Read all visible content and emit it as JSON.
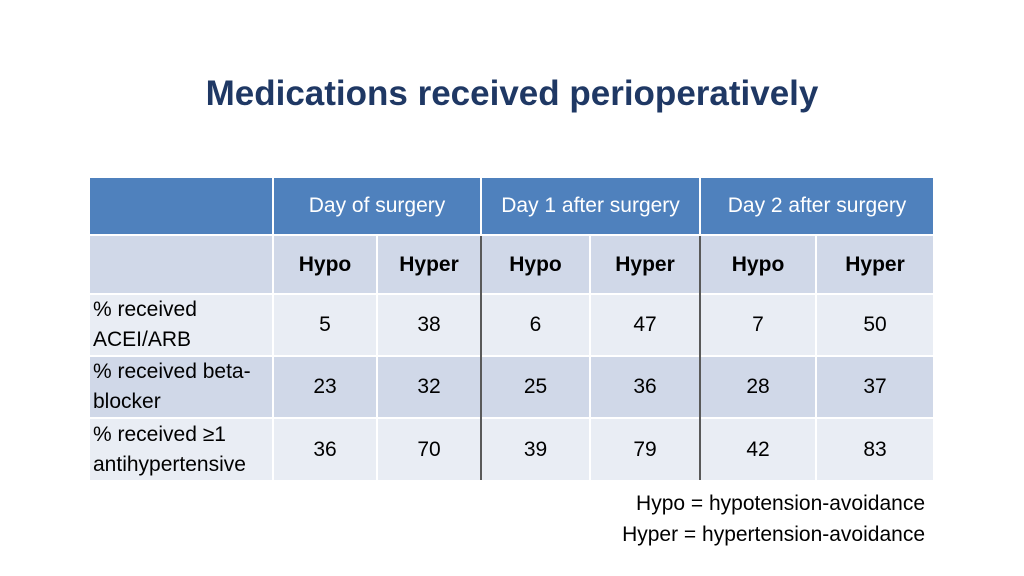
{
  "title": "Medications received perioperatively",
  "table": {
    "groups": [
      "Day of surgery",
      "Day 1 after surgery",
      "Day 2 after surgery"
    ],
    "subheaders": [
      "Hypo",
      "Hyper",
      "Hypo",
      "Hyper",
      "Hypo",
      "Hyper"
    ],
    "rows": [
      {
        "label_line1": "% received",
        "label_line2": "ACEI/ARB",
        "values": [
          "5",
          "38",
          "6",
          "47",
          "7",
          "50"
        ]
      },
      {
        "label_line1": "% received beta-",
        "label_line2": "blocker",
        "values": [
          "23",
          "32",
          "25",
          "36",
          "28",
          "37"
        ]
      },
      {
        "label_line1": "% received ≥1",
        "label_line2": "antihypertensive",
        "values": [
          "36",
          "70",
          "39",
          "79",
          "42",
          "83"
        ]
      }
    ]
  },
  "legend": {
    "line1": "Hypo = hypotension-avoidance",
    "line2": "Hyper = hypertension-avoidance"
  }
}
